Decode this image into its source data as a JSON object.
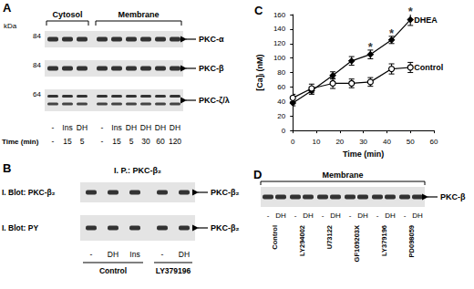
{
  "panels": {
    "A": {
      "label": "A",
      "kda_label": "kDa",
      "time_label": "Time (min)",
      "groups": [
        {
          "name": "Cytosol",
          "lanes": [
            {
              "treatment": "-",
              "time": "-"
            },
            {
              "treatment": "Ins",
              "time": "15"
            },
            {
              "treatment": "DH",
              "time": "5"
            }
          ]
        },
        {
          "name": "Membrane",
          "lanes": [
            {
              "treatment": "-",
              "time": "-"
            },
            {
              "treatment": "Ins",
              "time": "15"
            },
            {
              "treatment": "DH",
              "time": "5"
            },
            {
              "treatment": "DH",
              "time": "30"
            },
            {
              "treatment": "DH",
              "time": "60"
            },
            {
              "treatment": "DH",
              "time": "120"
            }
          ]
        }
      ],
      "rows": [
        {
          "kda": 84,
          "protein": "PKC-α"
        },
        {
          "kda": 84,
          "protein": "PKC-β"
        },
        {
          "kda": 64,
          "protein": "PKC-ζ/λ"
        }
      ]
    },
    "B": {
      "label": "B",
      "header": "I. P.: PKC-β₂",
      "rows": [
        {
          "blot": "I. Blot: PKC-β₂",
          "protein": "PKC-β₂"
        },
        {
          "blot": "I. Blot: PY",
          "protein": "PKC-β₂"
        }
      ],
      "groups": [
        {
          "name": "Control",
          "lanes": [
            "-",
            "DH",
            "Ins"
          ]
        },
        {
          "name": "LY379196",
          "lanes": [
            "-",
            "DH"
          ]
        }
      ]
    },
    "D": {
      "label": "D",
      "header": "Membrane",
      "protein": "PKC-β",
      "groups": [
        {
          "name": "Control",
          "lanes": [
            "-",
            "DH"
          ]
        },
        {
          "name": "LY294002",
          "lanes": [
            "-",
            "DH"
          ]
        },
        {
          "name": "U73122",
          "lanes": [
            "-",
            "DH"
          ]
        },
        {
          "name": "GF109203X",
          "lanes": [
            "-",
            "DH"
          ]
        },
        {
          "name": "LY379196",
          "lanes": [
            "-",
            "DH"
          ]
        },
        {
          "name": "PD098059",
          "lanes": [
            "-",
            "DH"
          ]
        }
      ]
    }
  },
  "chart_data": {
    "type": "line",
    "title": "C",
    "x_label": "Time (min)",
    "y_label": "[Ca]ᵢ (nM)",
    "xlim": [
      0,
      60
    ],
    "xticks": [
      0,
      10,
      20,
      30,
      40,
      50,
      60
    ],
    "ylim": [
      0,
      160
    ],
    "yticks": [
      0,
      20,
      40,
      60,
      80,
      100,
      120,
      140,
      160
    ],
    "grid": false,
    "series": [
      {
        "name": "DHEA",
        "color": "#000000",
        "marker": "diamond",
        "line_style": "solid",
        "x": [
          0,
          8,
          17,
          25,
          33,
          42,
          50
        ],
        "values": [
          38,
          55,
          76,
          96,
          105,
          125,
          153
        ],
        "errors": [
          4,
          5,
          5,
          6,
          6,
          5,
          8
        ]
      },
      {
        "name": "Control",
        "color": "#000000",
        "marker": "circle",
        "line_style": "solid",
        "x": [
          0,
          8,
          17,
          25,
          33,
          42,
          50
        ],
        "values": [
          45,
          58,
          65,
          65,
          67,
          85,
          87
        ],
        "errors": [
          5,
          6,
          7,
          6,
          6,
          7,
          7
        ]
      }
    ],
    "annotations": [
      {
        "text": "*",
        "x": 33,
        "y": 115
      },
      {
        "text": "*",
        "x": 42,
        "y": 134
      },
      {
        "text": "*",
        "x": 50,
        "y": 165
      }
    ]
  }
}
